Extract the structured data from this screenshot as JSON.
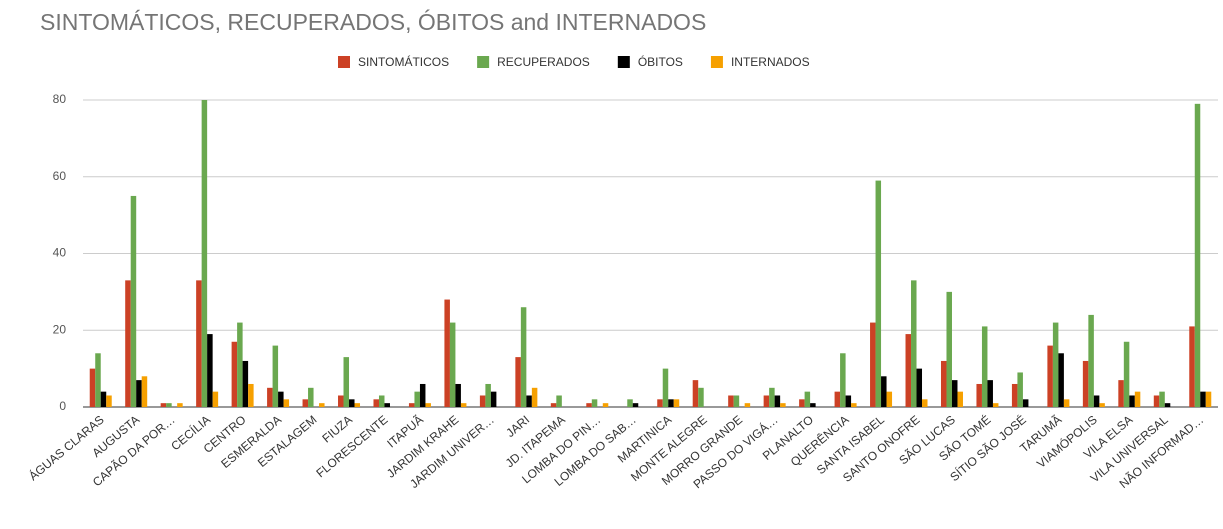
{
  "chart_data": {
    "type": "bar",
    "title": "SINTOMÁTICOS, RECUPERADOS, ÓBITOS and INTERNADOS",
    "categories": [
      "ÁGUAS CLARAS",
      "AUGUSTA",
      "CAPÃO DA POR…",
      "CECÍLIA",
      "CENTRO",
      "ESMERALDA",
      "ESTALAGEM",
      "FIUZA",
      "FLORESCENTE",
      "ITAPUÃ",
      "JARDIM KRAHE",
      "JARDIM UNIVER…",
      "JARI",
      "JD. ITAPEMA",
      "LOMBA DO PIN…",
      "LOMBA DO SAB…",
      "MARTINICA",
      "MONTE ALEGRE",
      "MORRO GRANDE",
      "PASSO DO VIGÁ…",
      "PLANALTO",
      "QUERÊNCIA",
      "SANTA ISABEL",
      "SANTO ONOFRE",
      "SÃO LUCAS",
      "SÃO TOMÉ",
      "SÍTIO SÃO JOSÉ",
      "TARUMÃ",
      "VIAMÓPOLIS",
      "VILA ELSA",
      "VILA UNIVERSAL",
      "NÃO INFORMAD…"
    ],
    "series": [
      {
        "name": "SINTOMÁTICOS",
        "color": "#cc4125",
        "values": [
          10,
          33,
          1,
          33,
          17,
          5,
          2,
          3,
          2,
          1,
          28,
          3,
          13,
          1,
          1,
          0,
          2,
          7,
          3,
          3,
          2,
          4,
          22,
          19,
          12,
          6,
          6,
          16,
          12,
          7,
          3,
          21
        ]
      },
      {
        "name": "RECUPERADOS",
        "color": "#6aa84f",
        "values": [
          14,
          55,
          1,
          80,
          22,
          16,
          5,
          13,
          3,
          4,
          22,
          6,
          26,
          3,
          2,
          2,
          10,
          5,
          3,
          5,
          4,
          14,
          59,
          33,
          30,
          21,
          9,
          22,
          24,
          17,
          4,
          79
        ]
      },
      {
        "name": "ÓBITOS",
        "color": "#000000",
        "values": [
          4,
          7,
          0,
          19,
          12,
          4,
          0,
          2,
          1,
          6,
          6,
          4,
          3,
          0,
          0,
          1,
          2,
          0,
          0,
          3,
          1,
          3,
          8,
          10,
          7,
          7,
          2,
          14,
          3,
          3,
          1,
          4
        ]
      },
      {
        "name": "INTERNADOS",
        "color": "#f6a000",
        "values": [
          3,
          8,
          1,
          4,
          6,
          2,
          1,
          1,
          0,
          1,
          1,
          0,
          5,
          0,
          1,
          0,
          2,
          0,
          1,
          1,
          0,
          1,
          4,
          2,
          4,
          1,
          0,
          2,
          1,
          4,
          0,
          4
        ]
      }
    ],
    "ylim": [
      0,
      80
    ],
    "yticks": [
      0,
      20,
      40,
      60,
      80
    ],
    "grid": true
  }
}
